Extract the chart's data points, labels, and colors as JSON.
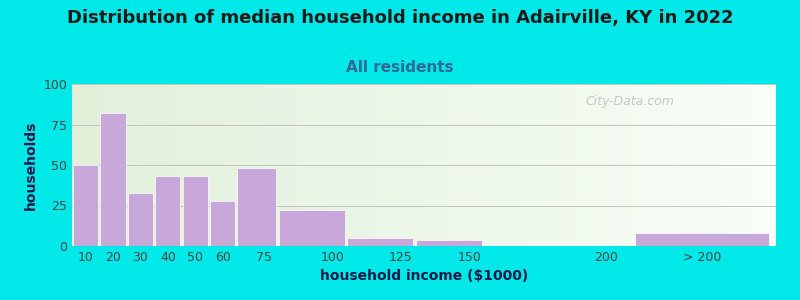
{
  "title": "Distribution of median household income in Adairville, KY in 2022",
  "subtitle": "All residents",
  "xlabel": "household income ($1000)",
  "ylabel": "households",
  "bar_values": [
    50,
    82,
    33,
    43,
    43,
    28,
    48,
    22,
    5,
    4,
    0,
    8
  ],
  "bar_widths": [
    10,
    10,
    10,
    10,
    10,
    10,
    15,
    25,
    25,
    25,
    50,
    50
  ],
  "bar_lefts": [
    5,
    15,
    25,
    35,
    45,
    55,
    65,
    80,
    105,
    130,
    155,
    210
  ],
  "bar_color": "#c8a8d8",
  "bar_edgecolor": "#ffffff",
  "background_outer": "#00e8e8",
  "background_plot_left": "#e2f0da",
  "background_plot_right": "#f8fef8",
  "ylim": [
    0,
    100
  ],
  "yticks": [
    0,
    25,
    50,
    75,
    100
  ],
  "xtick_positions": [
    10,
    20,
    30,
    40,
    50,
    60,
    75,
    100,
    125,
    150,
    200,
    235
  ],
  "xtick_labels": [
    "10",
    "20",
    "30",
    "40",
    "50",
    "60",
    "75",
    "100",
    "125",
    "150",
    "200",
    "> 200"
  ],
  "watermark": "City-Data.com",
  "title_fontsize": 13,
  "subtitle_fontsize": 11,
  "axis_label_fontsize": 10,
  "tick_fontsize": 9,
  "title_color": "#1a1a1a",
  "subtitle_color": "#336699",
  "label_color": "#1a1a4a"
}
